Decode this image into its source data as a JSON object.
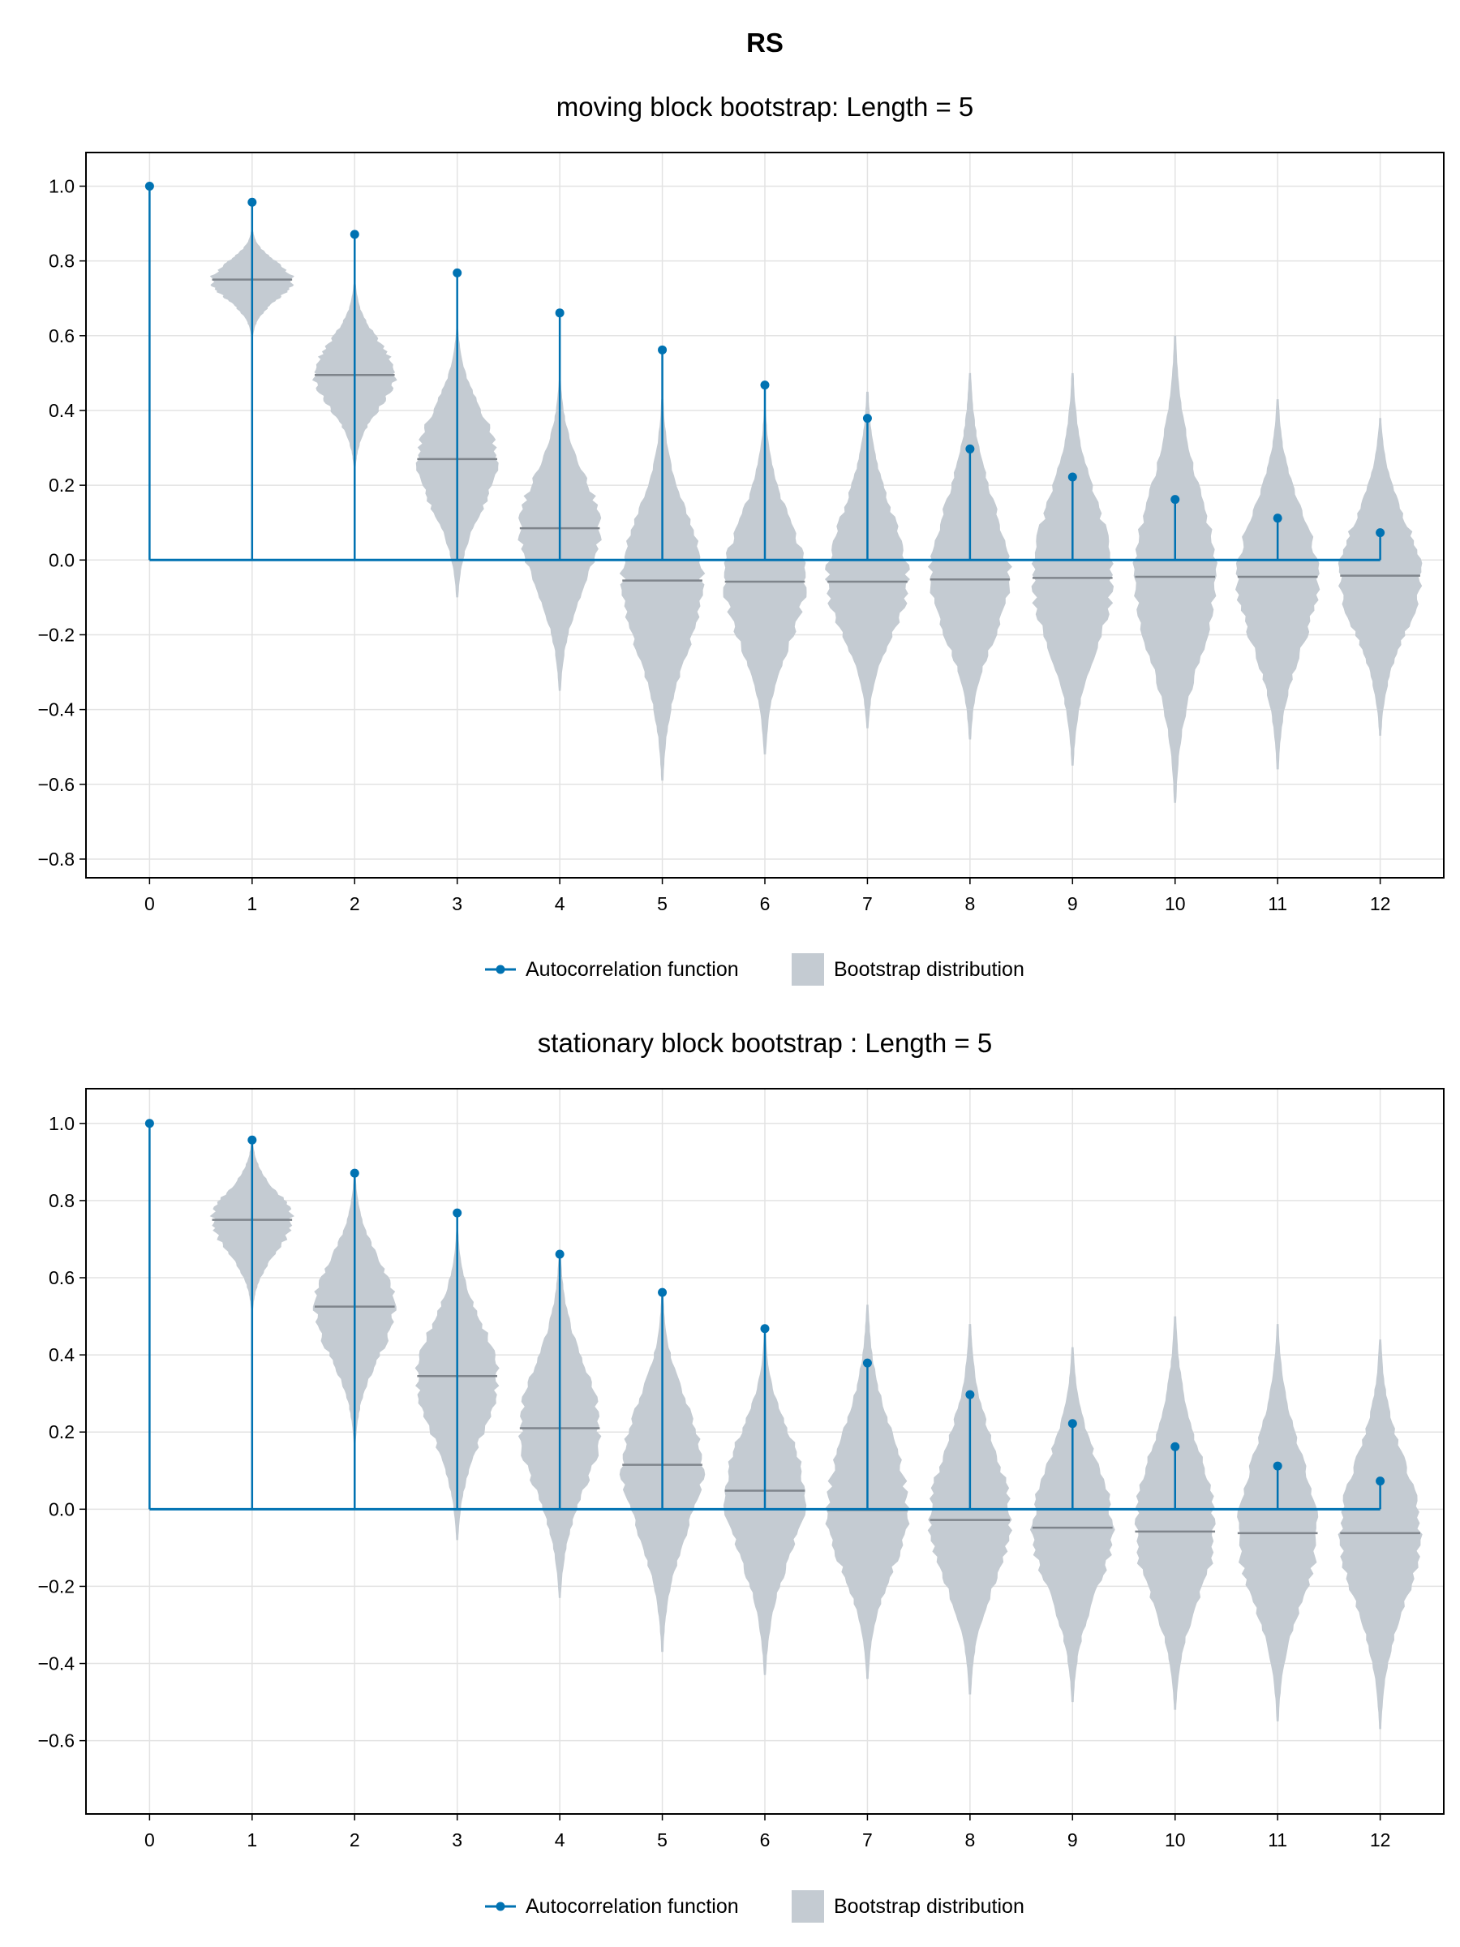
{
  "figure_title": "RS",
  "legend": {
    "acf_label": "Autocorrelation function",
    "boot_label": "Bootstrap distribution"
  },
  "colors": {
    "acf": "#0072b2",
    "violin": "#c4cbd2",
    "median": "#7f858c",
    "grid": "#e3e3e3",
    "frame": "#000000"
  },
  "chart_data": [
    {
      "type": "violin",
      "title": "moving block bootstrap: Length = 5",
      "xlabel": "",
      "ylabel": "",
      "x_ticks": [
        0,
        1,
        2,
        3,
        4,
        5,
        6,
        7,
        8,
        9,
        10,
        11,
        12
      ],
      "y_ticks": [
        1.0,
        0.8,
        0.6,
        0.4,
        0.2,
        0.0,
        -0.2,
        -0.4,
        -0.6,
        -0.8
      ],
      "y_tick_labels": [
        "1.0",
        "0.8",
        "0.6",
        "0.4",
        "0.2",
        "0.0",
        "−0.2",
        "−0.4",
        "−0.6",
        "−0.8"
      ],
      "xlim": [
        -0.62,
        12.62
      ],
      "ylim": [
        -0.85,
        1.09
      ],
      "grid": true,
      "legend_position": "bottom",
      "series": [
        {
          "name": "Autocorrelation function",
          "type": "stem",
          "x": [
            0,
            1,
            2,
            3,
            4,
            5,
            6,
            7,
            8,
            9,
            10,
            11,
            12
          ],
          "values": [
            1.0,
            0.957,
            0.871,
            0.768,
            0.661,
            0.562,
            0.468,
            0.379,
            0.297,
            0.222,
            0.162,
            0.112,
            0.073
          ]
        },
        {
          "name": "Bootstrap distribution",
          "type": "violin",
          "x": [
            1,
            2,
            3,
            4,
            5,
            6,
            7,
            8,
            9,
            10,
            11,
            12
          ],
          "medians": [
            0.75,
            0.495,
            0.27,
            0.085,
            -0.055,
            -0.058,
            -0.058,
            -0.052,
            -0.048,
            -0.045,
            -0.045,
            -0.042
          ],
          "min": [
            0.6,
            0.25,
            -0.1,
            -0.35,
            -0.59,
            -0.52,
            -0.45,
            -0.48,
            -0.55,
            -0.65,
            -0.56,
            -0.47
          ],
          "max": [
            0.88,
            0.74,
            0.62,
            0.48,
            0.43,
            0.4,
            0.45,
            0.5,
            0.5,
            0.6,
            0.43,
            0.38
          ]
        }
      ]
    },
    {
      "type": "violin",
      "title": "stationary block bootstrap : Length = 5",
      "xlabel": "",
      "ylabel": "",
      "x_ticks": [
        0,
        1,
        2,
        3,
        4,
        5,
        6,
        7,
        8,
        9,
        10,
        11,
        12
      ],
      "y_ticks": [
        1.0,
        0.8,
        0.6,
        0.4,
        0.2,
        0.0,
        -0.2,
        -0.4,
        -0.6
      ],
      "y_tick_labels": [
        "1.0",
        "0.8",
        "0.6",
        "0.4",
        "0.2",
        "0.0",
        "−0.2",
        "−0.4",
        "−0.6"
      ],
      "xlim": [
        -0.62,
        12.62
      ],
      "ylim": [
        -0.79,
        1.09
      ],
      "grid": true,
      "legend_position": "bottom",
      "series": [
        {
          "name": "Autocorrelation function",
          "type": "stem",
          "x": [
            0,
            1,
            2,
            3,
            4,
            5,
            6,
            7,
            8,
            9,
            10,
            11,
            12
          ],
          "values": [
            1.0,
            0.957,
            0.871,
            0.768,
            0.661,
            0.562,
            0.468,
            0.379,
            0.297,
            0.222,
            0.162,
            0.112,
            0.073
          ]
        },
        {
          "name": "Bootstrap distribution",
          "type": "violin",
          "x": [
            1,
            2,
            3,
            4,
            5,
            6,
            7,
            8,
            9,
            10,
            11,
            12
          ],
          "medians": [
            0.75,
            0.525,
            0.345,
            0.21,
            0.115,
            0.048,
            -0.002,
            -0.028,
            -0.048,
            -0.058,
            -0.062,
            -0.062
          ],
          "min": [
            0.52,
            0.17,
            -0.08,
            -0.23,
            -0.37,
            -0.43,
            -0.44,
            -0.48,
            -0.5,
            -0.52,
            -0.55,
            -0.57
          ],
          "max": [
            0.95,
            0.86,
            0.72,
            0.66,
            0.55,
            0.45,
            0.53,
            0.48,
            0.42,
            0.5,
            0.48,
            0.44
          ]
        }
      ]
    }
  ]
}
